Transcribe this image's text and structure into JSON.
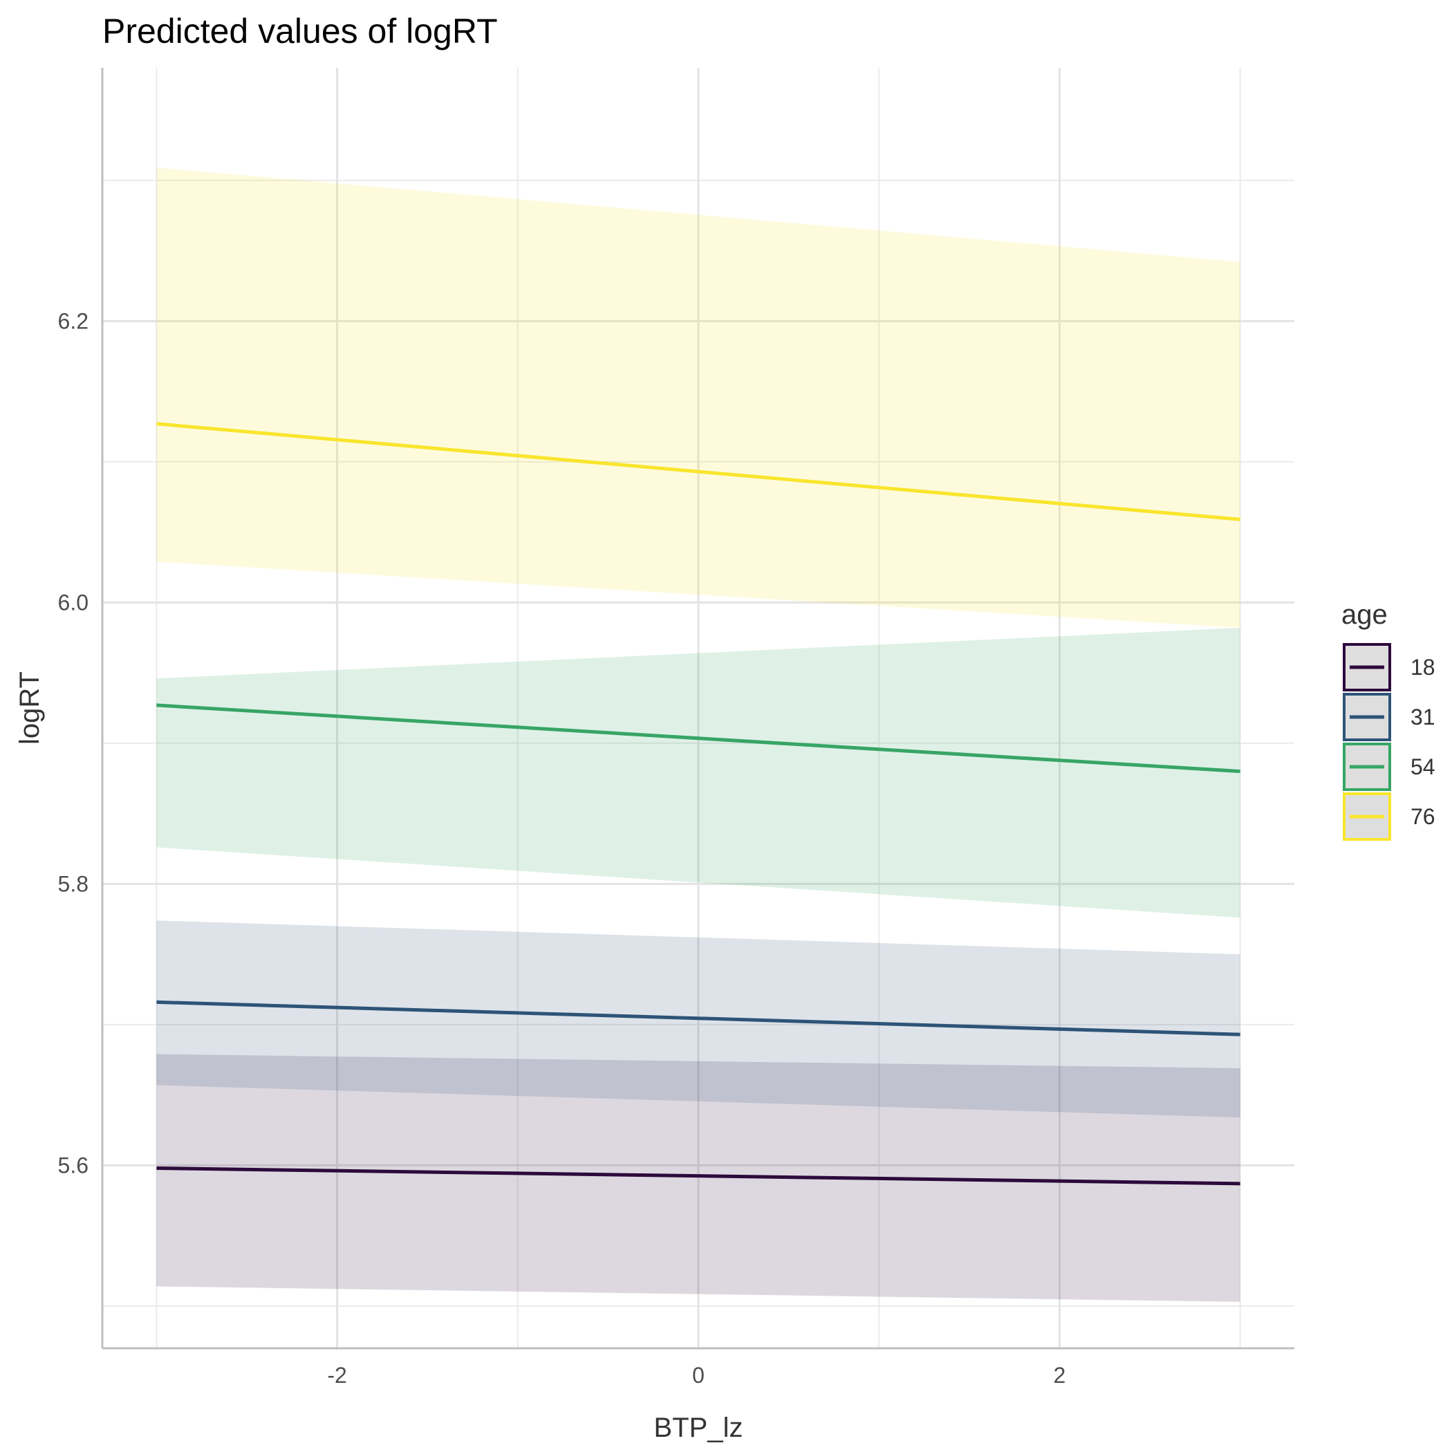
{
  "chart_data": {
    "type": "line",
    "title": "Predicted values of logRT",
    "xlabel": "BTP_lz",
    "ylabel": "logRT",
    "xlim": [
      -3.3,
      3.3
    ],
    "ylim": [
      5.47,
      6.38
    ],
    "x_ticks": [
      -2,
      0,
      2
    ],
    "x_tick_labels": [
      "-2",
      "0",
      "2"
    ],
    "y_ticks": [
      5.6,
      5.8,
      6.0,
      6.2
    ],
    "y_tick_labels": [
      "5.6",
      "5.8",
      "6.0",
      "6.2"
    ],
    "y_minor_ticks": [
      5.5,
      5.7,
      5.9,
      6.1,
      6.3
    ],
    "x_minor_ticks": [
      -3,
      -1,
      1,
      3
    ],
    "grid": true,
    "legend": {
      "title": "age",
      "position": "right"
    },
    "series": [
      {
        "name": "18",
        "color": "#2d0a3c",
        "x": [
          -3,
          3
        ],
        "y": [
          5.598,
          5.587
        ],
        "lower": [
          5.514,
          5.503
        ],
        "upper": [
          5.679,
          5.669
        ]
      },
      {
        "name": "31",
        "color": "#2e5377",
        "x": [
          -3,
          3
        ],
        "y": [
          5.716,
          5.693
        ],
        "lower": [
          5.657,
          5.634
        ],
        "upper": [
          5.774,
          5.75
        ]
      },
      {
        "name": "54",
        "color": "#37a565",
        "x": [
          -3,
          3
        ],
        "y": [
          5.927,
          5.88
        ],
        "lower": [
          5.826,
          5.776
        ],
        "upper": [
          5.946,
          5.982
        ]
      },
      {
        "name": "76",
        "color": "#f9e52d",
        "x": [
          -3,
          3
        ],
        "y": [
          6.127,
          6.059
        ],
        "lower": [
          6.029,
          5.982
        ],
        "upper": [
          6.309,
          6.242
        ]
      }
    ]
  }
}
